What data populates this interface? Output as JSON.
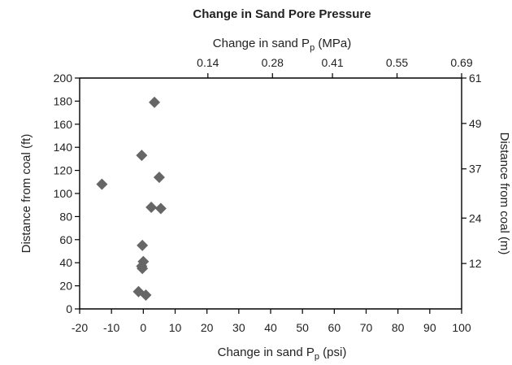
{
  "chart_data": {
    "type": "scatter",
    "title": "Change in Sand Pore Pressure",
    "x_bottom": {
      "label": "Change in sand P",
      "label_sub": "p",
      "label_unit": " (psi)",
      "range": [
        -20,
        100
      ],
      "ticks": [
        "-20",
        "-10",
        "0",
        "10",
        "20",
        "30",
        "40",
        "50",
        "60",
        "70",
        "80",
        "90",
        "100"
      ]
    },
    "x_top": {
      "label": "Change in sand P",
      "label_sub": "p",
      "label_unit": " (MPa)",
      "range": [
        -0.138,
        0.69
      ],
      "ticks": [
        "0.14",
        "0.28",
        "0.41",
        "0.55",
        "0.69"
      ],
      "tick_values": [
        0.14,
        0.28,
        0.41,
        0.55,
        0.69
      ]
    },
    "y_left": {
      "label": "Distance from coal (ft)",
      "range": [
        0,
        200
      ],
      "ticks": [
        "0",
        "20",
        "40",
        "60",
        "80",
        "100",
        "120",
        "140",
        "160",
        "180",
        "200"
      ]
    },
    "y_right": {
      "label": "Distance from coal (m)",
      "range": [
        0,
        61
      ],
      "ticks": [
        "12",
        "24",
        "37",
        "49",
        "61"
      ],
      "tick_values": [
        12,
        24,
        37,
        49,
        61
      ]
    },
    "marker_color": "#666666",
    "grid": false,
    "points": [
      {
        "x": 3.5,
        "y": 179
      },
      {
        "x": -0.5,
        "y": 133
      },
      {
        "x": 5.0,
        "y": 114
      },
      {
        "x": -13.0,
        "y": 108
      },
      {
        "x": 2.5,
        "y": 88
      },
      {
        "x": 5.5,
        "y": 87
      },
      {
        "x": -0.3,
        "y": 55
      },
      {
        "x": 0.0,
        "y": 41
      },
      {
        "x": -0.5,
        "y": 37
      },
      {
        "x": -0.3,
        "y": 35
      },
      {
        "x": -1.5,
        "y": 15
      },
      {
        "x": 0.8,
        "y": 12
      }
    ]
  }
}
